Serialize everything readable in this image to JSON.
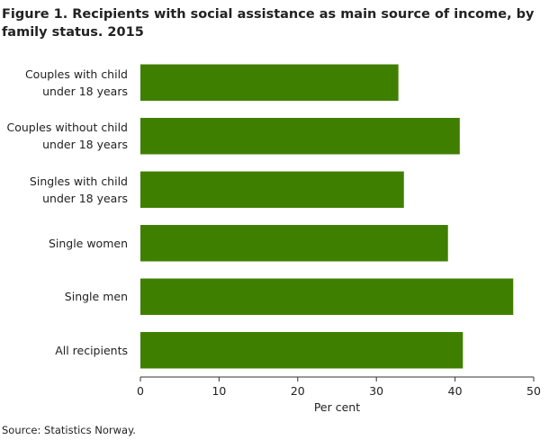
{
  "chart_data": {
    "type": "bar",
    "orientation": "horizontal",
    "title": "Figure 1. Recipients with social assistance as main source of income, by family status. 2015",
    "categories": [
      "Couples with child\nunder 18 years",
      "Couples without child\nunder 18 years",
      "Singles with child\nunder 18 years",
      "Single women",
      "Single men",
      "All recipients"
    ],
    "values": [
      32.8,
      40.6,
      33.5,
      39.1,
      47.4,
      41.0
    ],
    "color": "#3f7f00",
    "xlim": [
      0,
      50
    ],
    "xticks": [
      0,
      10,
      20,
      30,
      40,
      50
    ],
    "xlabel": "Per cent",
    "source": "Source: Statistics Norway."
  }
}
